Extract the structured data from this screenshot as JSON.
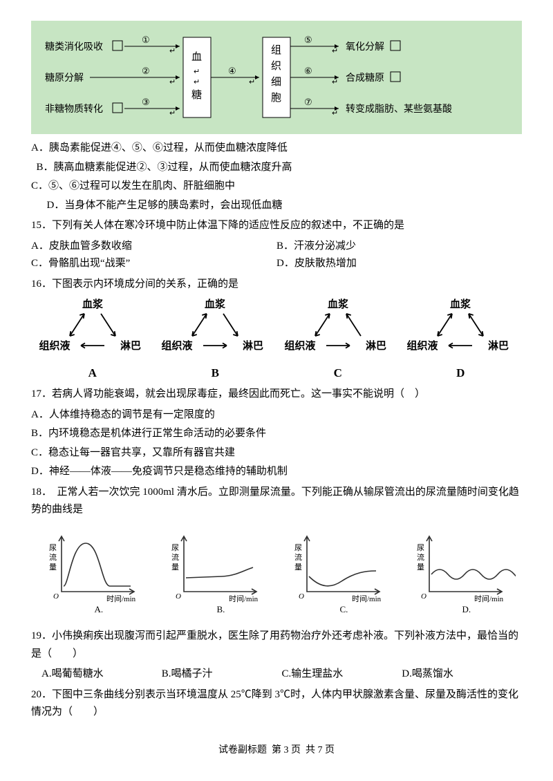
{
  "diagram1": {
    "bg": "#c7e5c3",
    "left_labels": [
      "糖类消化吸收",
      "糖原分解",
      "非糖物质转化"
    ],
    "left_nums": [
      "①",
      "②",
      "③"
    ],
    "mid_box1": "血\n糖",
    "mid_num": "④",
    "mid_box2": "组\n织\n细\n胞",
    "right_nums": [
      "⑤",
      "⑥",
      "⑦"
    ],
    "right_labels": [
      "氧化分解",
      "合成糖原",
      "转变成脂肪、某些氨基酸"
    ],
    "box_border": "#000000",
    "box_fill": "#ffffff",
    "text_color": "#000000",
    "font_size": 14
  },
  "q14_opts": {
    "A": "A．胰岛素能促进④、⑤、⑥过程，从而使血糖浓度降低",
    "B": "B．胰高血糖素能促进②、③过程，从而使血糖浓度升高",
    "C": "C．⑤、⑥过程可以发生在肌肉、肝脏细胞中",
    "D": "D．当身体不能产生足够的胰岛素时，会出现低血糖"
  },
  "q15": {
    "stem": "15．下列有关人体在寒冷环境中防止体温下降的适应性反应的叙述中，不正确的是",
    "A": "A．皮肤血管多数收缩",
    "B": "B．汗液分泌减少",
    "C": "C．骨骼肌出现“战栗”",
    "D": "D．皮肤散热增加"
  },
  "q16": {
    "stem": "16．下图表示内环境成分间的关系，正确的是",
    "nodes": {
      "top": "血浆",
      "left": "组织液",
      "right": "淋巴"
    },
    "labels": [
      "A",
      "B",
      "C",
      "D"
    ],
    "arrows": {
      "A": {
        "tl": "both",
        "tr": "down",
        "lr": "left"
      },
      "B": {
        "tl": "both",
        "tr": "down",
        "lr": "right"
      },
      "C": {
        "tl": "both",
        "tr": "up",
        "lr": "right"
      },
      "D": {
        "tl": "both",
        "tr": "both",
        "lr": "left"
      }
    },
    "stroke": "#000000",
    "stroke_width": 1.8,
    "font_size": 15,
    "font_weight": "bold"
  },
  "q17": {
    "stem": "17．若病人肾功能衰竭，就会出现尿毒症，最终因此而死亡。这一事实不能说明（　）",
    "A": "A．人体维持稳态的调节是有一定限度的",
    "B": "B．内环境稳态是机体进行正常生命活动的必要条件",
    "C": "C．稳态让每一器官共享，又靠所有器官共建",
    "D": "D．神经——体液——免疫调节只是稳态维持的辅助机制"
  },
  "q18": {
    "stem": "18．　正常人若一次饮完 1000ml 清水后。立即测量尿流量。下列能正确从输尿管流出的尿流量随时间变化趋势的曲线是",
    "ylabel": "尿流量",
    "xlabel": "时间/min",
    "labels": [
      "A.",
      "B.",
      "C.",
      "D."
    ],
    "axis_color": "#303030",
    "curve_color": "#303030",
    "stroke_width": 1.6,
    "font_size": 11,
    "curves": {
      "A": "hump",
      "B": "flat_rise",
      "C": "dip_rise",
      "D": "wavy"
    }
  },
  "q19": {
    "stem": "19．小伟换痢疾出现腹泻而引起严重脱水，医生除了用药物治疗外还考虑补液。下列补液方法中，最恰当的是（　　）",
    "A": "A.喝葡萄糖水",
    "B": "B.喝橘子汁",
    "C": "C.输生理盐水",
    "D": "D.喝蒸馏水"
  },
  "q20": {
    "stem": "20．下图中三条曲线分别表示当环境温度从 25℃降到 3℃时，人体内甲状腺激素含量、尿量及酶活性的变化情况为（　　）"
  },
  "footer": {
    "left": "试卷副标题",
    "page": "第 3 页",
    "total": "共 7 页"
  }
}
